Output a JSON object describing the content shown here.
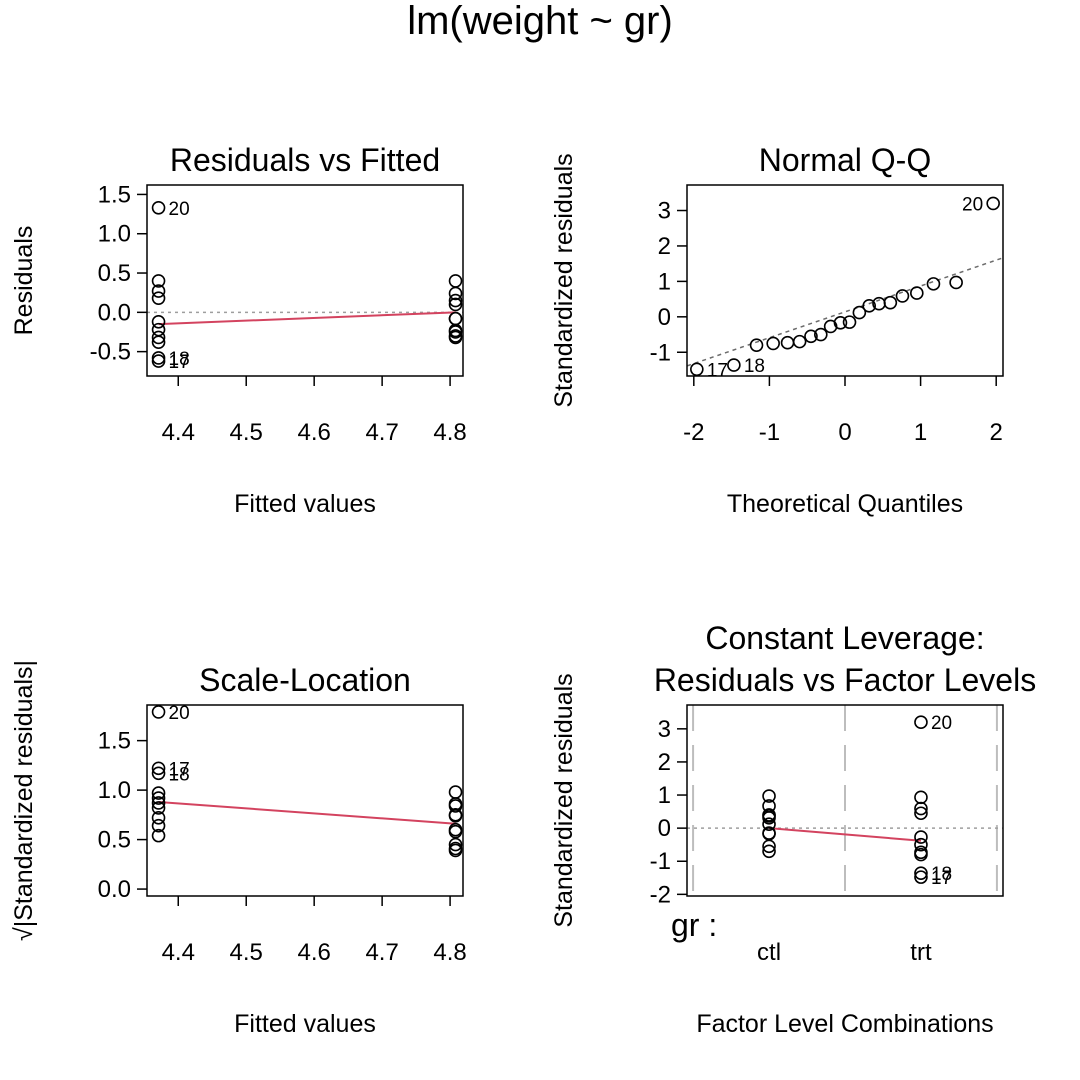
{
  "page_title": "lm(weight ~ gr)",
  "colors": {
    "smooth": "#D3435F",
    "reference": "#9E9E9E",
    "qqline": "#6B6B6B",
    "vlines": "#BDBDBD",
    "points": "#000000"
  },
  "chart_data": [
    {
      "id": "residuals-vs-fitted",
      "type": "scatter",
      "title": "Residuals vs Fitted",
      "xlabel": "Fitted values",
      "ylabel": "Residuals",
      "xlim": [
        4.354,
        4.819
      ],
      "ylim": [
        -0.81,
        1.62
      ],
      "xticks": [
        4.4,
        4.5,
        4.6,
        4.7,
        4.8
      ],
      "xtick_labels": [
        "4.4",
        "4.5",
        "4.6",
        "4.7",
        "4.8"
      ],
      "yticks": [
        -0.5,
        0.0,
        0.5,
        1.0,
        1.5
      ],
      "ytick_labels": [
        "-0.5",
        "0.0",
        "0.5",
        "1.0",
        "1.5"
      ],
      "points": [
        {
          "x": 4.371,
          "y": 1.33
        },
        {
          "x": 4.371,
          "y": 0.4
        },
        {
          "x": 4.371,
          "y": 0.27
        },
        {
          "x": 4.371,
          "y": 0.18
        },
        {
          "x": 4.371,
          "y": -0.12
        },
        {
          "x": 4.371,
          "y": -0.22
        },
        {
          "x": 4.371,
          "y": -0.32
        },
        {
          "x": 4.371,
          "y": -0.38
        },
        {
          "x": 4.371,
          "y": -0.58
        },
        {
          "x": 4.371,
          "y": -0.62
        },
        {
          "x": 4.808,
          "y": 0.4
        },
        {
          "x": 4.808,
          "y": 0.24
        },
        {
          "x": 4.808,
          "y": 0.15
        },
        {
          "x": 4.808,
          "y": 0.1
        },
        {
          "x": 4.808,
          "y": -0.08
        },
        {
          "x": 4.808,
          "y": -0.08
        },
        {
          "x": 4.808,
          "y": -0.23
        },
        {
          "x": 4.808,
          "y": -0.25
        },
        {
          "x": 4.808,
          "y": -0.3
        },
        {
          "x": 4.808,
          "y": -0.32
        }
      ],
      "point_labels": [
        {
          "x": 4.371,
          "y": 1.33,
          "text": "20"
        },
        {
          "x": 4.371,
          "y": -0.58,
          "text": "18"
        },
        {
          "x": 4.371,
          "y": -0.62,
          "text": "17"
        }
      ],
      "hline": 0,
      "smooth": {
        "x": [
          4.371,
          4.808
        ],
        "y": [
          -0.15,
          0.0
        ]
      }
    },
    {
      "id": "normal-qq",
      "type": "scatter",
      "title": "Normal Q-Q",
      "xlabel": "Theoretical Quantiles",
      "ylabel": "Standardized residuals",
      "xlim": [
        -2.09,
        2.09
      ],
      "ylim": [
        -1.67,
        3.72
      ],
      "xticks": [
        -2,
        -1,
        0,
        1,
        2
      ],
      "xtick_labels": [
        "-2",
        "-1",
        "0",
        "1",
        "2"
      ],
      "yticks": [
        -1,
        0,
        1,
        2,
        3
      ],
      "ytick_labels": [
        "-1",
        "0",
        "1",
        "2",
        "3"
      ],
      "points": [
        {
          "x": -1.96,
          "y": -1.48
        },
        {
          "x": -1.47,
          "y": -1.36
        },
        {
          "x": -1.17,
          "y": -0.8
        },
        {
          "x": -0.95,
          "y": -0.75
        },
        {
          "x": -0.76,
          "y": -0.73
        },
        {
          "x": -0.6,
          "y": -0.7
        },
        {
          "x": -0.45,
          "y": -0.55
        },
        {
          "x": -0.32,
          "y": -0.5
        },
        {
          "x": -0.19,
          "y": -0.27
        },
        {
          "x": -0.06,
          "y": -0.17
        },
        {
          "x": 0.06,
          "y": -0.15
        },
        {
          "x": 0.19,
          "y": 0.12
        },
        {
          "x": 0.32,
          "y": 0.31
        },
        {
          "x": 0.45,
          "y": 0.37
        },
        {
          "x": 0.6,
          "y": 0.4
        },
        {
          "x": 0.76,
          "y": 0.59
        },
        {
          "x": 0.95,
          "y": 0.67
        },
        {
          "x": 1.17,
          "y": 0.93
        },
        {
          "x": 1.47,
          "y": 0.97
        },
        {
          "x": 1.96,
          "y": 3.2
        }
      ],
      "point_labels": [
        {
          "x": -1.96,
          "y": -1.48,
          "text": "17",
          "side": "right"
        },
        {
          "x": -1.47,
          "y": -1.36,
          "text": "18",
          "side": "right"
        },
        {
          "x": 1.96,
          "y": 3.2,
          "text": "20",
          "side": "left"
        }
      ],
      "qqline": {
        "slope": 0.73,
        "intercept": 0.14
      }
    },
    {
      "id": "scale-location",
      "type": "scatter",
      "title": "Scale-Location",
      "xlabel": "Fitted values",
      "ylabel": "√|Standardized residuals|",
      "xlim": [
        4.354,
        4.819
      ],
      "ylim": [
        -0.07,
        1.86
      ],
      "xticks": [
        4.4,
        4.5,
        4.6,
        4.7,
        4.8
      ],
      "xtick_labels": [
        "4.4",
        "4.5",
        "4.6",
        "4.7",
        "4.8"
      ],
      "yticks": [
        0.0,
        0.5,
        1.0,
        1.5
      ],
      "ytick_labels": [
        "0.0",
        "0.5",
        "1.0",
        "1.5"
      ],
      "points": [
        {
          "x": 4.371,
          "y": 1.79
        },
        {
          "x": 4.371,
          "y": 1.22
        },
        {
          "x": 4.371,
          "y": 1.17
        },
        {
          "x": 4.371,
          "y": 0.97
        },
        {
          "x": 4.371,
          "y": 0.92
        },
        {
          "x": 4.371,
          "y": 0.87
        },
        {
          "x": 4.371,
          "y": 0.82
        },
        {
          "x": 4.371,
          "y": 0.72
        },
        {
          "x": 4.371,
          "y": 0.64
        },
        {
          "x": 4.371,
          "y": 0.54
        },
        {
          "x": 4.808,
          "y": 0.98
        },
        {
          "x": 4.808,
          "y": 0.86
        },
        {
          "x": 4.808,
          "y": 0.84
        },
        {
          "x": 4.808,
          "y": 0.75
        },
        {
          "x": 4.808,
          "y": 0.74
        },
        {
          "x": 4.808,
          "y": 0.6
        },
        {
          "x": 4.808,
          "y": 0.58
        },
        {
          "x": 4.808,
          "y": 0.45
        },
        {
          "x": 4.808,
          "y": 0.41
        },
        {
          "x": 4.808,
          "y": 0.39
        }
      ],
      "point_labels": [
        {
          "x": 4.371,
          "y": 1.79,
          "text": "20"
        },
        {
          "x": 4.371,
          "y": 1.22,
          "text": "17"
        },
        {
          "x": 4.371,
          "y": 1.17,
          "text": "18"
        }
      ],
      "smooth": {
        "x": [
          4.371,
          4.808
        ],
        "y": [
          0.88,
          0.66
        ]
      }
    },
    {
      "id": "constant-leverage",
      "type": "scatter",
      "title_lines": [
        "Constant Leverage:",
        "Residuals vs Factor Levels"
      ],
      "xlabel": "Factor Level Combinations",
      "ylabel": "Standardized residuals",
      "factor_label": "gr :",
      "xlim": [
        0.46,
        2.54
      ],
      "ylim": [
        -2.05,
        3.72
      ],
      "levels": [
        {
          "x": 1,
          "label": "ctl"
        },
        {
          "x": 2,
          "label": "trt"
        }
      ],
      "yticks": [
        -2,
        -1,
        0,
        1,
        2,
        3
      ],
      "ytick_labels": [
        "-2",
        "-1",
        "0",
        "1",
        "2",
        "3"
      ],
      "vlines": [
        0.5,
        1.5,
        2.5
      ],
      "hline": 0,
      "points": [
        {
          "x": 1,
          "y": 0.97
        },
        {
          "x": 1,
          "y": 0.67
        },
        {
          "x": 1,
          "y": 0.4
        },
        {
          "x": 1,
          "y": 0.37
        },
        {
          "x": 1,
          "y": 0.31
        },
        {
          "x": 1,
          "y": 0.12
        },
        {
          "x": 1,
          "y": -0.15
        },
        {
          "x": 1,
          "y": -0.17
        },
        {
          "x": 1,
          "y": -0.55
        },
        {
          "x": 1,
          "y": -0.7
        },
        {
          "x": 2,
          "y": 3.2
        },
        {
          "x": 2,
          "y": 0.93
        },
        {
          "x": 2,
          "y": 0.59
        },
        {
          "x": 2,
          "y": 0.45
        },
        {
          "x": 2,
          "y": -0.27
        },
        {
          "x": 2,
          "y": -0.5
        },
        {
          "x": 2,
          "y": -0.73
        },
        {
          "x": 2,
          "y": -0.8
        },
        {
          "x": 2,
          "y": -1.36
        },
        {
          "x": 2,
          "y": -1.48
        }
      ],
      "point_labels": [
        {
          "x": 2,
          "y": 3.2,
          "text": "20"
        },
        {
          "x": 2,
          "y": -1.36,
          "text": "18"
        },
        {
          "x": 2,
          "y": -1.48,
          "text": "17"
        }
      ],
      "smooth": {
        "x": [
          1,
          2
        ],
        "y": [
          0.0,
          -0.38
        ]
      }
    }
  ]
}
